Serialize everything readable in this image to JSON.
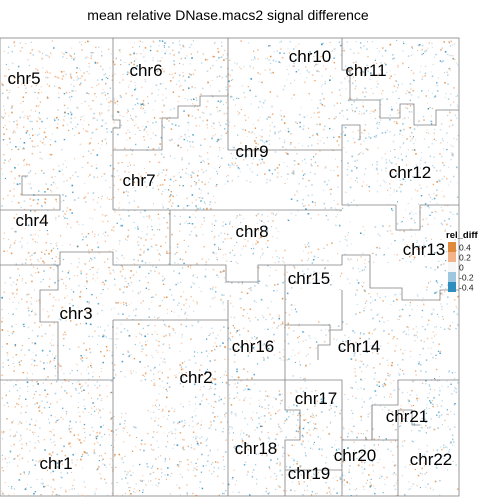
{
  "chart_data": {
    "type": "heatmap",
    "title": "mean relative DNase.macs2 signal difference",
    "xlabel": "",
    "ylabel": "",
    "legend": {
      "title": "rel_diff",
      "placement": "right",
      "ticks": [
        "0.4",
        "0.2",
        "0",
        "-0.2",
        "-0.4"
      ],
      "colors": [
        "#e08a3c",
        "#f4b48a",
        "#f7f7f7",
        "#9fc8e0",
        "#2c8fbf"
      ]
    },
    "colors": {
      "positive_strong": "#e08a3c",
      "positive_weak": "#f4b48a",
      "negative_weak": "#9fc8e0",
      "negative_strong": "#2c8fbf",
      "border": "#808080"
    },
    "regions": [
      {
        "label": "chr5"
      },
      {
        "label": "chr6"
      },
      {
        "label": "chr10"
      },
      {
        "label": "chr11"
      },
      {
        "label": "chr9"
      },
      {
        "label": "chr7"
      },
      {
        "label": "chr12"
      },
      {
        "label": "chr4"
      },
      {
        "label": "chr8"
      },
      {
        "label": "chr13"
      },
      {
        "label": "chr15"
      },
      {
        "label": "chr3"
      },
      {
        "label": "chr16"
      },
      {
        "label": "chr14"
      },
      {
        "label": "chr2"
      },
      {
        "label": "chr17"
      },
      {
        "label": "chr21"
      },
      {
        "label": "chr18"
      },
      {
        "label": "chr20"
      },
      {
        "label": "chr22"
      },
      {
        "label": "chr1"
      },
      {
        "label": "chr19"
      }
    ]
  }
}
